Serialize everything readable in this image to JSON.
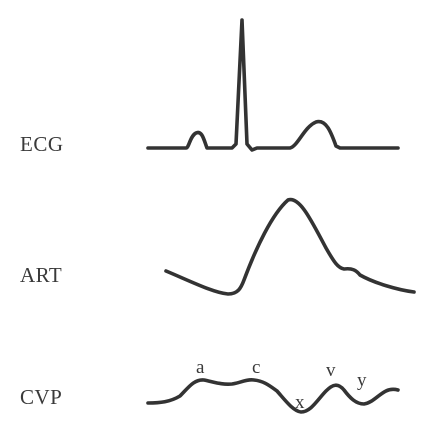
{
  "rows": [
    {
      "label": "ECG"
    },
    {
      "label": "ART"
    },
    {
      "label": "CVP"
    }
  ],
  "cvp_wave_labels": {
    "a": "a",
    "c": "c",
    "x": "x",
    "v": "v",
    "y": "y"
  }
}
